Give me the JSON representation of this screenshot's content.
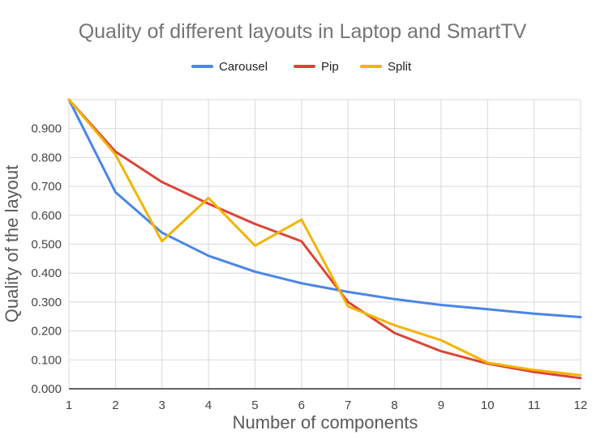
{
  "chart_data": {
    "type": "line",
    "title": "Quality of different layouts in Laptop and SmartTV",
    "xlabel": "Number of components",
    "ylabel": "Quality of the layout",
    "x": [
      1,
      2,
      3,
      4,
      5,
      6,
      7,
      8,
      9,
      10,
      11,
      12
    ],
    "xlim": [
      1,
      12
    ],
    "ylim": [
      0,
      1.0
    ],
    "yticks": [
      0,
      0.1,
      0.2,
      0.3,
      0.4,
      0.5,
      0.6,
      0.7,
      0.8,
      0.9
    ],
    "ytick_labels": [
      "0.000",
      "0.100",
      "0.200",
      "0.300",
      "0.400",
      "0.500",
      "0.600",
      "0.700",
      "0.800",
      "0.900"
    ],
    "grid": true,
    "legend_position": "top",
    "series": [
      {
        "name": "Carousel",
        "color": "#4a86e8",
        "values": [
          1.0,
          0.68,
          0.54,
          0.46,
          0.405,
          0.365,
          0.335,
          0.31,
          0.29,
          0.275,
          0.26,
          0.248
        ]
      },
      {
        "name": "Pip",
        "color": "#db4437",
        "values": [
          1.0,
          0.82,
          0.715,
          0.64,
          0.57,
          0.51,
          0.3,
          0.193,
          0.13,
          0.087,
          0.058,
          0.037
        ]
      },
      {
        "name": "Split",
        "color": "#f4b400",
        "values": [
          1.0,
          0.81,
          0.51,
          0.66,
          0.495,
          0.585,
          0.285,
          0.22,
          0.168,
          0.09,
          0.065,
          0.047
        ]
      }
    ]
  }
}
